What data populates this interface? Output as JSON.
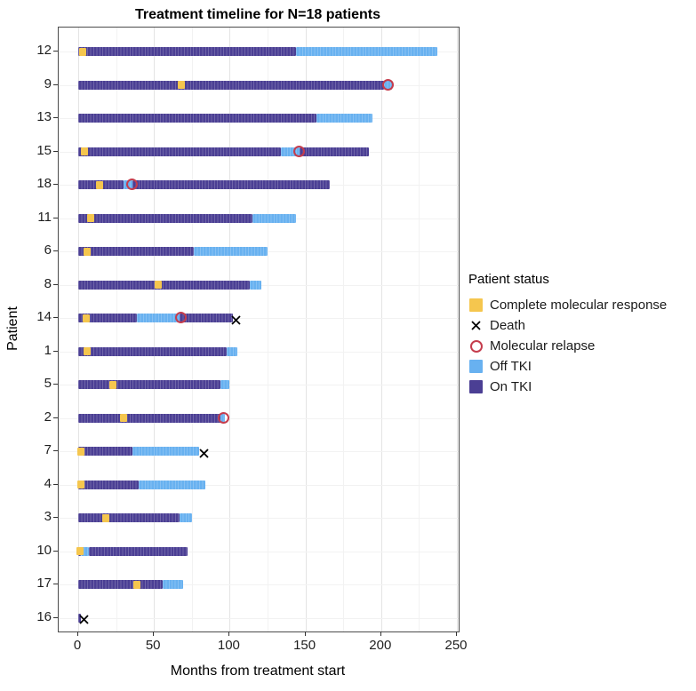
{
  "title": "Treatment timeline for N=18 patients",
  "x_axis": {
    "label": "Months from treatment start",
    "ticks": [
      0,
      50,
      100,
      150,
      200,
      250
    ]
  },
  "y_axis": {
    "label": "Patient"
  },
  "legend": {
    "title": "Patient status",
    "items": [
      {
        "label": "Complete molecular response",
        "shape": "square",
        "color": "#F5C64E"
      },
      {
        "label": "Death",
        "shape": "x",
        "color": "#000000"
      },
      {
        "label": "Molecular relapse",
        "shape": "circle",
        "color": "#C53D4D"
      },
      {
        "label": "Off TKI",
        "shape": "square",
        "color": "#68B1F0"
      },
      {
        "label": "On TKI",
        "shape": "square",
        "color": "#4B3F94"
      }
    ]
  },
  "chart_data": {
    "type": "swimmer-bar",
    "title": "Treatment timeline for N=18 patients",
    "xlabel": "Months from treatment start",
    "ylabel": "Patient",
    "xlim": [
      0,
      250
    ],
    "x_major_ticks": [
      0,
      50,
      100,
      150,
      200,
      250
    ],
    "x_minor_ticks": [
      25,
      75,
      125,
      175,
      225
    ],
    "grid": true,
    "legend_position": "right",
    "colors": {
      "on_tki": "#4B3F94",
      "off_tki": "#68B1F0",
      "cmr": "#F5C64E",
      "relapse": "#C53D4D",
      "death": "#000000"
    },
    "patients": [
      {
        "id": "12",
        "segments": [
          {
            "status": "On TKI",
            "start": 0,
            "end": 144
          },
          {
            "status": "Off TKI",
            "start": 144,
            "end": 237
          }
        ],
        "markers": [
          {
            "type": "cmr",
            "month": 3
          }
        ]
      },
      {
        "id": "9",
        "segments": [
          {
            "status": "On TKI",
            "start": 0,
            "end": 202
          },
          {
            "status": "Off TKI",
            "start": 202,
            "end": 207
          }
        ],
        "markers": [
          {
            "type": "cmr",
            "month": 68
          },
          {
            "type": "relapse",
            "month": 205
          }
        ]
      },
      {
        "id": "13",
        "segments": [
          {
            "status": "On TKI",
            "start": 0,
            "end": 157
          },
          {
            "status": "Off TKI",
            "start": 157,
            "end": 194
          }
        ],
        "markers": []
      },
      {
        "id": "15",
        "segments": [
          {
            "status": "On TKI",
            "start": 0,
            "end": 134
          },
          {
            "status": "Off TKI",
            "start": 134,
            "end": 146
          },
          {
            "status": "On TKI",
            "start": 146,
            "end": 192
          }
        ],
        "markers": [
          {
            "type": "cmr",
            "month": 4
          },
          {
            "type": "relapse",
            "month": 146
          }
        ]
      },
      {
        "id": "18",
        "segments": [
          {
            "status": "On TKI",
            "start": 0,
            "end": 30
          },
          {
            "status": "Off TKI",
            "start": 30,
            "end": 36
          },
          {
            "status": "On TKI",
            "start": 36,
            "end": 166
          }
        ],
        "markers": [
          {
            "type": "cmr",
            "month": 14
          },
          {
            "type": "relapse",
            "month": 36
          }
        ]
      },
      {
        "id": "11",
        "segments": [
          {
            "status": "On TKI",
            "start": 0,
            "end": 115
          },
          {
            "status": "Off TKI",
            "start": 115,
            "end": 144
          }
        ],
        "markers": [
          {
            "type": "cmr",
            "month": 8
          }
        ]
      },
      {
        "id": "6",
        "segments": [
          {
            "status": "On TKI",
            "start": 0,
            "end": 76
          },
          {
            "status": "Off TKI",
            "start": 76,
            "end": 125
          }
        ],
        "markers": [
          {
            "type": "cmr",
            "month": 6
          }
        ]
      },
      {
        "id": "8",
        "segments": [
          {
            "status": "On TKI",
            "start": 0,
            "end": 113
          },
          {
            "status": "Off TKI",
            "start": 113,
            "end": 121
          }
        ],
        "markers": [
          {
            "type": "cmr",
            "month": 53
          }
        ]
      },
      {
        "id": "14",
        "segments": [
          {
            "status": "On TKI",
            "start": 0,
            "end": 39
          },
          {
            "status": "Off TKI",
            "start": 39,
            "end": 67
          },
          {
            "status": "On TKI",
            "start": 67,
            "end": 102
          }
        ],
        "markers": [
          {
            "type": "cmr",
            "month": 5
          },
          {
            "type": "relapse",
            "month": 68
          },
          {
            "type": "death",
            "month": 104
          }
        ]
      },
      {
        "id": "1",
        "segments": [
          {
            "status": "On TKI",
            "start": 0,
            "end": 98
          },
          {
            "status": "Off TKI",
            "start": 98,
            "end": 105
          }
        ],
        "markers": [
          {
            "type": "cmr",
            "month": 6
          }
        ]
      },
      {
        "id": "5",
        "segments": [
          {
            "status": "On TKI",
            "start": 0,
            "end": 94
          },
          {
            "status": "Off TKI",
            "start": 94,
            "end": 100
          }
        ],
        "markers": [
          {
            "type": "cmr",
            "month": 23
          }
        ]
      },
      {
        "id": "2",
        "segments": [
          {
            "status": "On TKI",
            "start": 0,
            "end": 94
          },
          {
            "status": "Off TKI",
            "start": 94,
            "end": 97
          }
        ],
        "markers": [
          {
            "type": "cmr",
            "month": 30
          },
          {
            "type": "relapse",
            "month": 96
          }
        ]
      },
      {
        "id": "7",
        "segments": [
          {
            "status": "On TKI",
            "start": 0,
            "end": 36
          },
          {
            "status": "Off TKI",
            "start": 36,
            "end": 80
          }
        ],
        "markers": [
          {
            "type": "cmr",
            "month": 2
          },
          {
            "type": "death",
            "month": 83
          }
        ]
      },
      {
        "id": "4",
        "segments": [
          {
            "status": "On TKI",
            "start": 0,
            "end": 40
          },
          {
            "status": "Off TKI",
            "start": 40,
            "end": 84
          }
        ],
        "markers": [
          {
            "type": "cmr",
            "month": 2
          }
        ]
      },
      {
        "id": "3",
        "segments": [
          {
            "status": "On TKI",
            "start": 0,
            "end": 67
          },
          {
            "status": "Off TKI",
            "start": 67,
            "end": 75
          }
        ],
        "markers": [
          {
            "type": "cmr",
            "month": 18
          }
        ]
      },
      {
        "id": "10",
        "segments": [
          {
            "status": "On TKI",
            "start": 0,
            "end": 2
          },
          {
            "status": "Off TKI",
            "start": 2,
            "end": 7
          },
          {
            "status": "On TKI",
            "start": 7,
            "end": 72
          }
        ],
        "markers": [
          {
            "type": "cmr",
            "month": 1
          }
        ]
      },
      {
        "id": "17",
        "segments": [
          {
            "status": "On TKI",
            "start": 0,
            "end": 56
          },
          {
            "status": "Off TKI",
            "start": 56,
            "end": 69
          }
        ],
        "markers": [
          {
            "type": "cmr",
            "month": 39
          }
        ]
      },
      {
        "id": "16",
        "segments": [
          {
            "status": "On TKI",
            "start": 0,
            "end": 2
          }
        ],
        "markers": [
          {
            "type": "death",
            "month": 4
          }
        ]
      }
    ]
  }
}
